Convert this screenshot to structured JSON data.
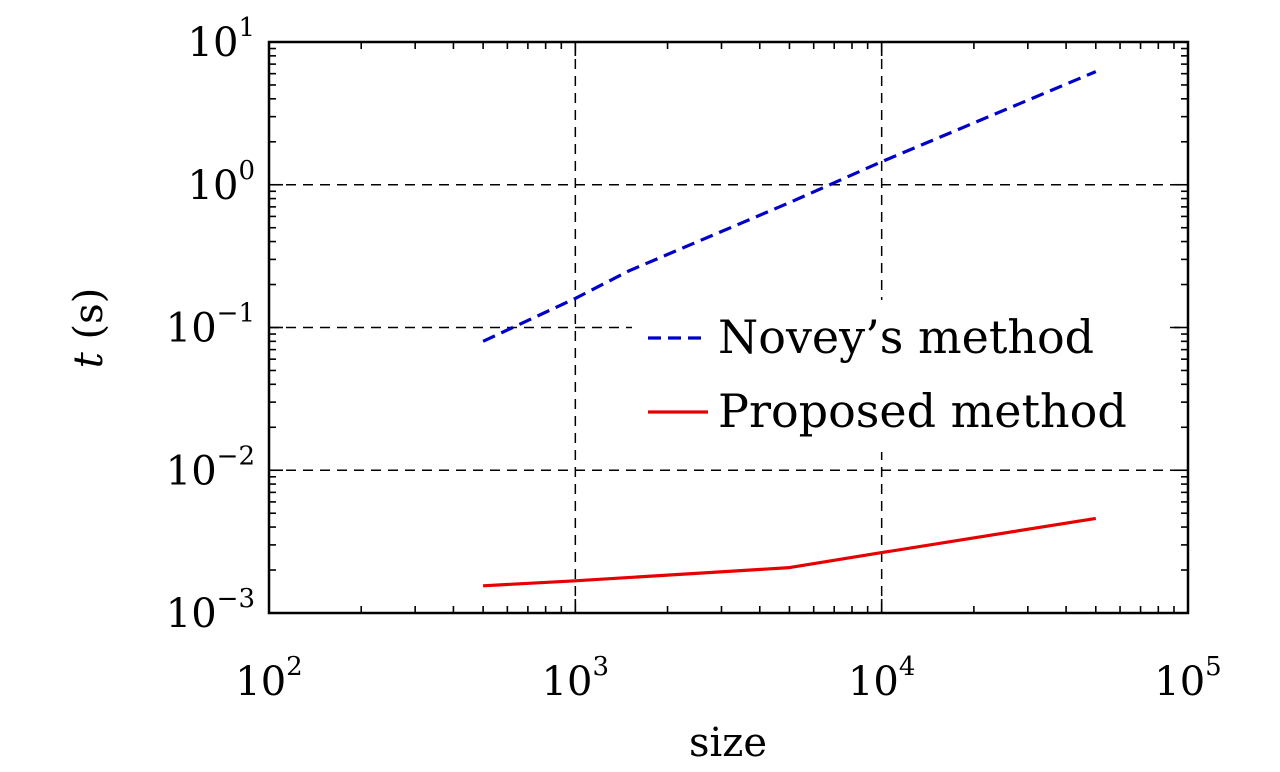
{
  "chart_data": {
    "type": "line",
    "title": "",
    "xlabel": "size",
    "ylabel_italic": "t",
    "ylabel_rest": " (s)",
    "xscale": "log",
    "yscale": "log",
    "xlim": [
      100,
      100000
    ],
    "ylim": [
      0.001,
      10
    ],
    "grid": true,
    "legend_position": "center-right",
    "x_ticks": [
      {
        "value": 100,
        "base": "10",
        "exp": "2"
      },
      {
        "value": 1000,
        "base": "10",
        "exp": "3"
      },
      {
        "value": 10000,
        "base": "10",
        "exp": "4"
      },
      {
        "value": 100000,
        "base": "10",
        "exp": "5"
      }
    ],
    "y_ticks": [
      {
        "value": 0.001,
        "base": "10",
        "exp": "−3"
      },
      {
        "value": 0.01,
        "base": "10",
        "exp": "−2"
      },
      {
        "value": 0.1,
        "base": "10",
        "exp": "−1"
      },
      {
        "value": 1,
        "base": "10",
        "exp": "0"
      },
      {
        "value": 10,
        "base": "10",
        "exp": "1"
      }
    ],
    "series": [
      {
        "name": "Novey’s method",
        "color": "#0000cc",
        "style": "dashed",
        "x": [
          500,
          1000,
          1500,
          5000,
          10000,
          50000
        ],
        "y": [
          0.08,
          0.16,
          0.25,
          0.75,
          1.45,
          6.2
        ]
      },
      {
        "name": "Proposed method",
        "color": "#e60000",
        "style": "solid",
        "x": [
          500,
          1000,
          5000,
          10000,
          50000
        ],
        "y": [
          0.00155,
          0.00168,
          0.00208,
          0.00265,
          0.0046
        ]
      }
    ]
  }
}
